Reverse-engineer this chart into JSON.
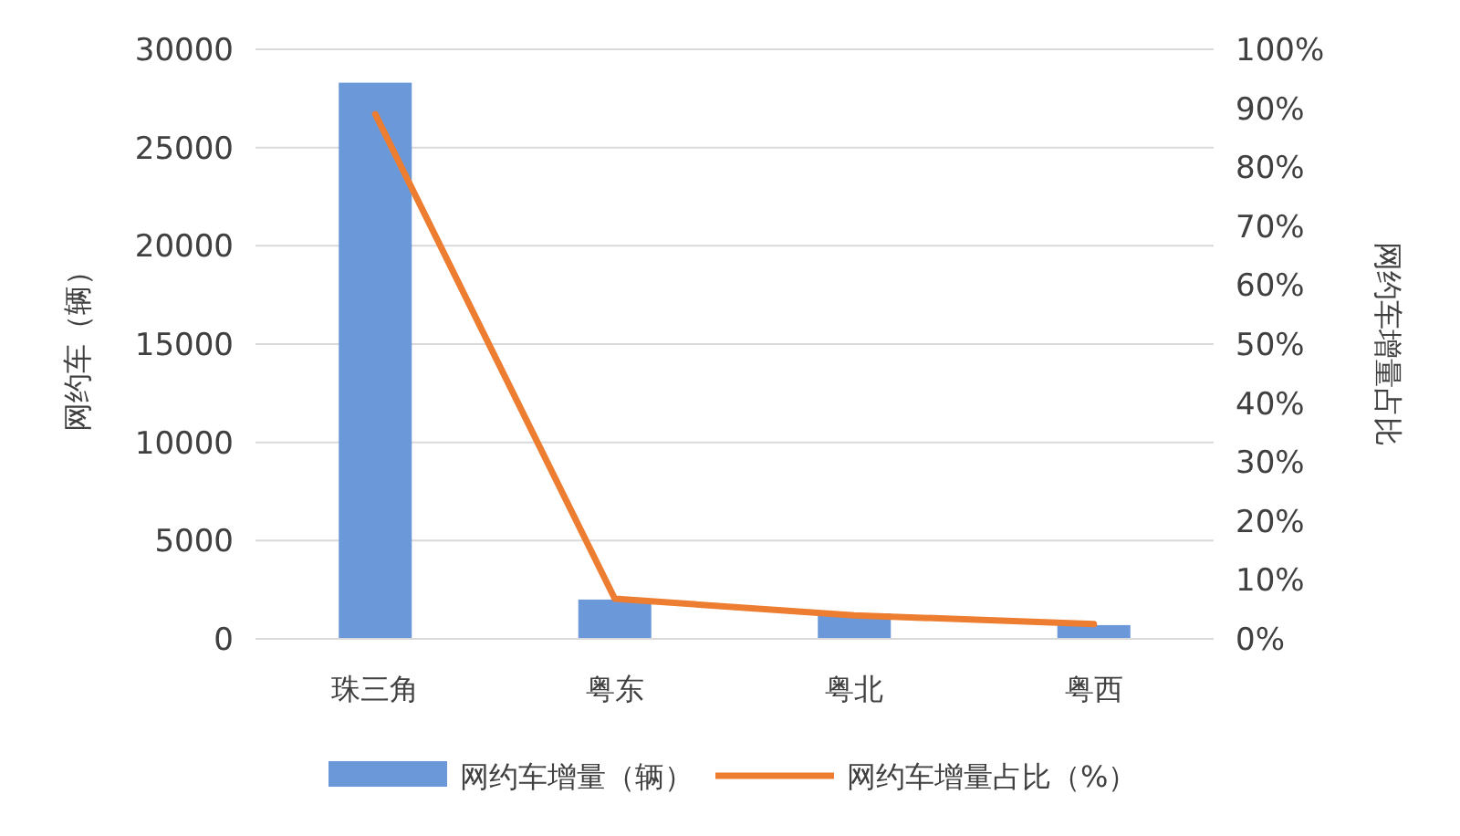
{
  "chart_data": {
    "type": "bar",
    "categories": [
      "珠三角",
      "粤东",
      "粤北",
      "粤西"
    ],
    "ylabel": "网约车（辆）",
    "y2label": "网约车增量占比",
    "series": [
      {
        "name": "网约车增量（辆）",
        "color": "#6a98d8",
        "values": [
          28300,
          2000,
          1300,
          700
        ]
      },
      {
        "name": "网约车增量占比（%）",
        "type": "line",
        "axis": "y2",
        "color": "#ed7d31",
        "values": [
          89,
          6.8,
          4,
          2.5
        ]
      }
    ],
    "ylim": [
      0,
      30000
    ],
    "yticks": [
      0,
      5000,
      10000,
      15000,
      20000,
      25000,
      30000
    ],
    "y2lim": [
      0,
      100
    ],
    "y2ticks": [
      {
        "value": 0,
        "label": "0%"
      },
      {
        "value": 10,
        "label": "10%"
      },
      {
        "value": 20,
        "label": "20%"
      },
      {
        "value": 30,
        "label": "30%"
      },
      {
        "value": 40,
        "label": "40%"
      },
      {
        "value": 50,
        "label": "50%"
      },
      {
        "value": 60,
        "label": "60%"
      },
      {
        "value": 70,
        "label": "70%"
      },
      {
        "value": 80,
        "label": "80%"
      },
      {
        "value": 90,
        "label": "90%"
      },
      {
        "value": 100,
        "label": "100%"
      }
    ],
    "grid": "y",
    "legend": "bottom",
    "marker": "none"
  }
}
